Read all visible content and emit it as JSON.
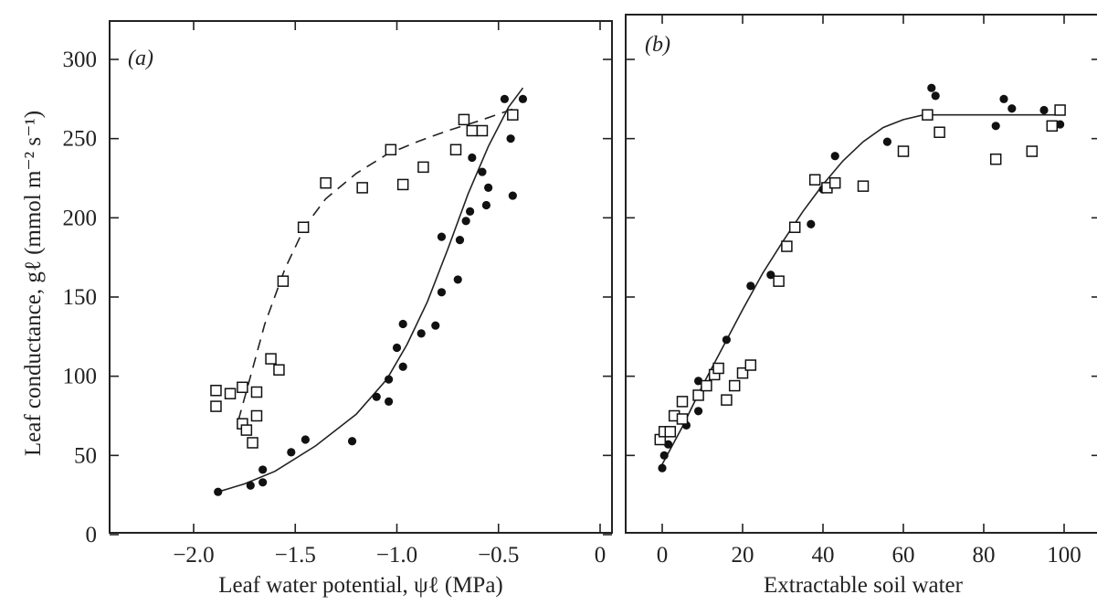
{
  "chart_data": [
    {
      "type": "scatter",
      "panel_label": "(a)",
      "xlabel": "Leaf water potential, ψℓ (MPa)",
      "ylabel": "Leaf conductance, gℓ (mmol m⁻² s⁻¹)",
      "xlim": [
        -2.4,
        0
      ],
      "ylim": [
        0,
        325
      ],
      "x_ticks": [
        -2.0,
        -1.5,
        -1.0,
        -0.5,
        0
      ],
      "x_tick_labels": [
        "−2.0",
        "−1.5",
        "−1.0",
        "−0.5",
        "0"
      ],
      "y_ticks": [
        0,
        50,
        100,
        150,
        200,
        250,
        300
      ],
      "y_tick_labels": [
        "0",
        "50",
        "100",
        "150",
        "200",
        "250",
        "300"
      ],
      "grid": false,
      "series": [
        {
          "marker": "filled-circle",
          "line": "solid",
          "points": [
            [
              -1.88,
              27
            ],
            [
              -1.72,
              31
            ],
            [
              -1.66,
              33
            ],
            [
              -1.66,
              41
            ],
            [
              -1.52,
              52
            ],
            [
              -1.45,
              60
            ],
            [
              -1.22,
              59
            ],
            [
              -1.1,
              87
            ],
            [
              -1.04,
              84
            ],
            [
              -1.04,
              98
            ],
            [
              -1.0,
              118
            ],
            [
              -0.97,
              106
            ],
            [
              -0.97,
              133
            ],
            [
              -0.88,
              127
            ],
            [
              -0.81,
              132
            ],
            [
              -0.78,
              153
            ],
            [
              -0.78,
              188
            ],
            [
              -0.7,
              161
            ],
            [
              -0.69,
              186
            ],
            [
              -0.66,
              198
            ],
            [
              -0.64,
              204
            ],
            [
              -0.63,
              238
            ],
            [
              -0.58,
              229
            ],
            [
              -0.56,
              208
            ],
            [
              -0.55,
              219
            ],
            [
              -0.47,
              275
            ],
            [
              -0.44,
              250
            ],
            [
              -0.43,
              214
            ],
            [
              -0.38,
              275
            ]
          ],
          "curve": [
            [
              -1.88,
              27
            ],
            [
              -1.75,
              32
            ],
            [
              -1.6,
              40
            ],
            [
              -1.4,
              56
            ],
            [
              -1.2,
              76
            ],
            [
              -1.05,
              98
            ],
            [
              -0.95,
              120
            ],
            [
              -0.85,
              147
            ],
            [
              -0.75,
              180
            ],
            [
              -0.65,
              215
            ],
            [
              -0.55,
              245
            ],
            [
              -0.45,
              270
            ],
            [
              -0.38,
              282
            ]
          ]
        },
        {
          "marker": "open-square",
          "line": "dashed",
          "points": [
            [
              -1.89,
              91
            ],
            [
              -1.89,
              81
            ],
            [
              -1.82,
              89
            ],
            [
              -1.76,
              93
            ],
            [
              -1.76,
              70
            ],
            [
              -1.74,
              66
            ],
            [
              -1.71,
              58
            ],
            [
              -1.69,
              90
            ],
            [
              -1.69,
              75
            ],
            [
              -1.62,
              111
            ],
            [
              -1.58,
              104
            ],
            [
              -1.56,
              160
            ],
            [
              -1.46,
              194
            ],
            [
              -1.35,
              222
            ],
            [
              -1.17,
              219
            ],
            [
              -1.03,
              243
            ],
            [
              -0.97,
              221
            ],
            [
              -0.87,
              232
            ],
            [
              -0.71,
              243
            ],
            [
              -0.67,
              262
            ],
            [
              -0.63,
              255
            ],
            [
              -0.58,
              255
            ],
            [
              -0.43,
              265
            ]
          ],
          "curve": [
            [
              -1.78,
              72
            ],
            [
              -1.72,
              100
            ],
            [
              -1.65,
              133
            ],
            [
              -1.55,
              168
            ],
            [
              -1.45,
              195
            ],
            [
              -1.35,
              212
            ],
            [
              -1.2,
              228
            ],
            [
              -1.05,
              240
            ],
            [
              -0.9,
              248
            ],
            [
              -0.75,
              255
            ],
            [
              -0.6,
              261
            ],
            [
              -0.4,
              270
            ]
          ]
        }
      ]
    },
    {
      "type": "scatter",
      "panel_label": "(b)",
      "xlabel": "Extractable soil water",
      "ylabel": "",
      "xlim": [
        -4,
        106
      ],
      "ylim": [
        0,
        325
      ],
      "x_ticks": [
        0,
        20,
        40,
        60,
        80,
        100
      ],
      "x_tick_labels": [
        "0",
        "20",
        "40",
        "60",
        "80",
        "100"
      ],
      "y_ticks": [
        50,
        100,
        150,
        200,
        250,
        300
      ],
      "y_tick_labels": [],
      "grid": false,
      "series": [
        {
          "marker": "filled-circle",
          "line": "none",
          "points": [
            [
              0,
              42
            ],
            [
              0.5,
              50
            ],
            [
              1.5,
              57
            ],
            [
              6,
              69
            ],
            [
              9,
              78
            ],
            [
              9,
              97
            ],
            [
              16,
              123
            ],
            [
              22,
              157
            ],
            [
              27,
              164
            ],
            [
              37,
              196
            ],
            [
              40,
              218
            ],
            [
              43,
              239
            ],
            [
              56,
              248
            ],
            [
              67,
              282
            ],
            [
              68,
              277
            ],
            [
              83,
              258
            ],
            [
              85,
              275
            ],
            [
              87,
              269
            ],
            [
              95,
              268
            ],
            [
              99,
              259
            ]
          ]
        },
        {
          "marker": "open-square",
          "line": "none",
          "points": [
            [
              -0.5,
              60
            ],
            [
              0.5,
              65
            ],
            [
              2,
              65
            ],
            [
              3,
              75
            ],
            [
              5,
              84
            ],
            [
              5,
              73
            ],
            [
              9,
              88
            ],
            [
              11,
              94
            ],
            [
              13,
              101
            ],
            [
              14,
              105
            ],
            [
              16,
              85
            ],
            [
              18,
              94
            ],
            [
              20,
              102
            ],
            [
              22,
              107
            ],
            [
              29,
              160
            ],
            [
              31,
              182
            ],
            [
              33,
              194
            ],
            [
              38,
              224
            ],
            [
              41,
              219
            ],
            [
              43,
              222
            ],
            [
              50,
              220
            ],
            [
              60,
              242
            ],
            [
              66,
              265
            ],
            [
              69,
              254
            ],
            [
              83,
              237
            ],
            [
              92,
              242
            ],
            [
              97,
              258
            ],
            [
              99,
              268
            ]
          ]
        }
      ],
      "fit_curve": [
        [
          -0.5,
          42
        ],
        [
          5,
          68
        ],
        [
          10,
          94
        ],
        [
          15,
          118
        ],
        [
          20,
          142
        ],
        [
          25,
          165
        ],
        [
          30,
          185
        ],
        [
          35,
          204
        ],
        [
          40,
          221
        ],
        [
          45,
          236
        ],
        [
          50,
          248
        ],
        [
          55,
          257
        ],
        [
          60,
          262
        ],
        [
          65,
          265
        ],
        [
          100,
          265
        ]
      ]
    }
  ]
}
